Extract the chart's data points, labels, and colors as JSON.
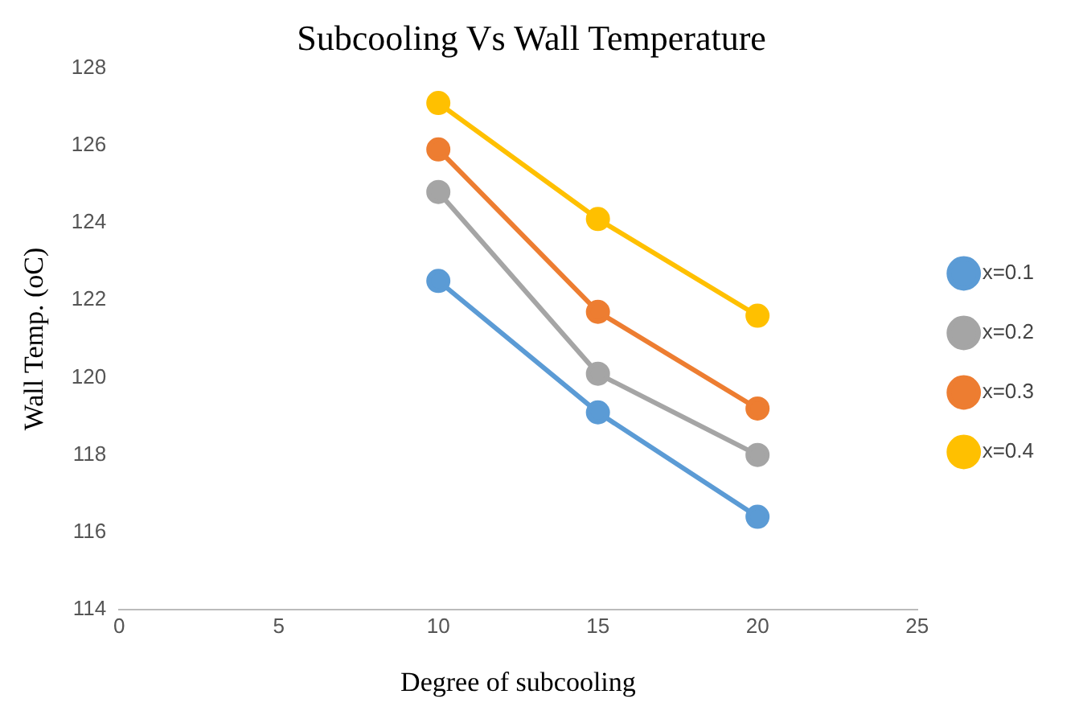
{
  "chart_data": {
    "type": "line",
    "title": "Subcooling Vs Wall Temperature",
    "xlabel": "Degree of subcooling",
    "ylabel": "Wall Temp. (oC)",
    "xlim": [
      0,
      25
    ],
    "xticks": [
      0,
      5,
      10,
      15,
      20,
      25
    ],
    "ylim": [
      114,
      128
    ],
    "yticks": [
      114,
      116,
      118,
      120,
      122,
      124,
      126,
      128
    ],
    "x": [
      10,
      15,
      20
    ],
    "grid": false,
    "legend": "right",
    "marker": "circle",
    "series": [
      {
        "name": "x=0.1",
        "color": "#5b9bd5",
        "values": [
          122.5,
          119.1,
          116.4
        ]
      },
      {
        "name": "x=0.2",
        "color": "#a5a5a5",
        "values": [
          124.8,
          120.1,
          118.0
        ]
      },
      {
        "name": "x=0.3",
        "color": "#ed7d31",
        "values": [
          125.9,
          121.7,
          119.2
        ]
      },
      {
        "name": "x=0.4",
        "color": "#ffc000",
        "values": [
          127.1,
          124.1,
          121.6
        ]
      }
    ]
  }
}
